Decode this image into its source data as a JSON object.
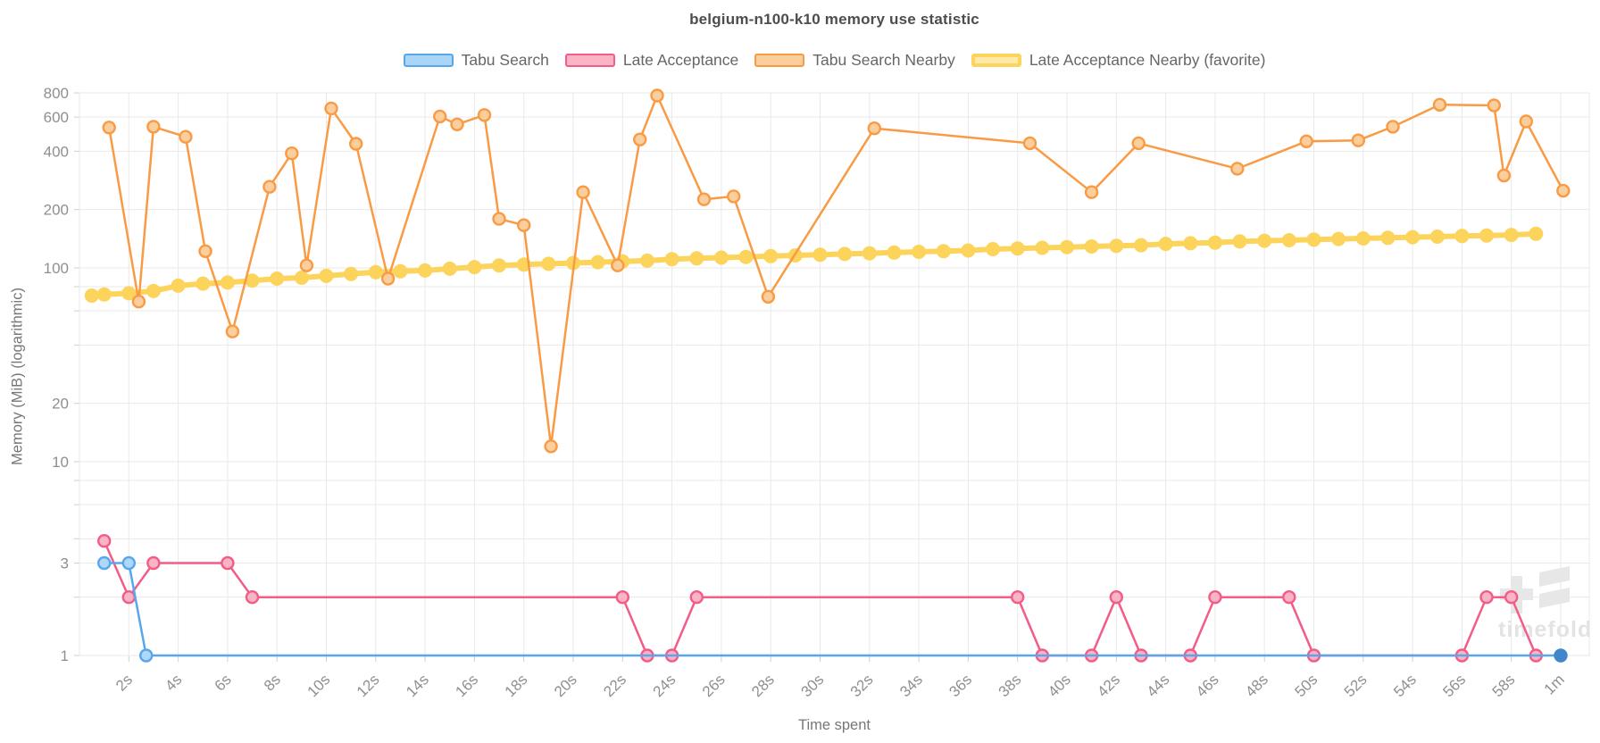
{
  "title": "belgium-n100-k10 memory use statistic",
  "watermark": {
    "text": "timefold"
  },
  "y_axis": {
    "title": "Memory (MiB) (logarithmic)",
    "gridlines": [
      {
        "v": 800,
        "label": "800"
      },
      {
        "v": 600,
        "label": "600"
      },
      {
        "v": 400,
        "label": "400"
      },
      {
        "v": 200,
        "label": "200"
      },
      {
        "v": 100,
        "label": "100"
      },
      {
        "v": 80
      },
      {
        "v": 60
      },
      {
        "v": 40
      },
      {
        "v": 20,
        "label": "20"
      },
      {
        "v": 10,
        "label": "10"
      },
      {
        "v": 8
      },
      {
        "v": 6
      },
      {
        "v": 4
      },
      {
        "v": 3,
        "label": "3"
      },
      {
        "v": 2
      },
      {
        "v": 1,
        "label": "1"
      }
    ]
  },
  "x_axis": {
    "title": "Time spent",
    "ticks": [
      {
        "t": 2,
        "label": "2s"
      },
      {
        "t": 4,
        "label": "4s"
      },
      {
        "t": 6,
        "label": "6s"
      },
      {
        "t": 8,
        "label": "8s"
      },
      {
        "t": 10,
        "label": "10s"
      },
      {
        "t": 12,
        "label": "12s"
      },
      {
        "t": 14,
        "label": "14s"
      },
      {
        "t": 16,
        "label": "16s"
      },
      {
        "t": 18,
        "label": "18s"
      },
      {
        "t": 20,
        "label": "20s"
      },
      {
        "t": 22,
        "label": "22s"
      },
      {
        "t": 24,
        "label": "24s"
      },
      {
        "t": 26,
        "label": "26s"
      },
      {
        "t": 28,
        "label": "28s"
      },
      {
        "t": 30,
        "label": "30s"
      },
      {
        "t": 32,
        "label": "32s"
      },
      {
        "t": 34,
        "label": "34s"
      },
      {
        "t": 36,
        "label": "36s"
      },
      {
        "t": 38,
        "label": "38s"
      },
      {
        "t": 40,
        "label": "40s"
      },
      {
        "t": 42,
        "label": "42s"
      },
      {
        "t": 44,
        "label": "44s"
      },
      {
        "t": 46,
        "label": "46s"
      },
      {
        "t": 48,
        "label": "48s"
      },
      {
        "t": 50,
        "label": "50s"
      },
      {
        "t": 52,
        "label": "52s"
      },
      {
        "t": 54,
        "label": "54s"
      },
      {
        "t": 56,
        "label": "56s"
      },
      {
        "t": 58,
        "label": "58s"
      },
      {
        "t": 60,
        "label": "1m"
      }
    ]
  },
  "chart_data": {
    "type": "line",
    "title": "belgium-n100-k10 memory use statistic",
    "xlabel": "Time spent",
    "ylabel": "Memory (MiB) (logarithmic)",
    "x_unit": "seconds",
    "x_range": [
      0,
      60
    ],
    "y_scale": "log",
    "y_range": [
      1,
      800
    ],
    "grid": true,
    "legend_position": "top",
    "series": [
      {
        "name": "Tabu Search",
        "stroke": "#58A6EC",
        "fill": "#AFD8F8",
        "line_width": 2.5,
        "marker_r": 6.5,
        "end_marker_solid": "#4186CB",
        "points": [
          [
            1,
            3
          ],
          [
            2,
            3
          ],
          [
            2.7,
            1
          ],
          [
            60,
            1
          ]
        ]
      },
      {
        "name": "Late Acceptance",
        "stroke": "#F25C86",
        "fill": "#F9B4C6",
        "line_width": 2.5,
        "marker_r": 6.5,
        "points": [
          [
            1,
            3.9
          ],
          [
            2,
            2
          ],
          [
            3,
            3
          ],
          [
            6,
            3
          ],
          [
            7,
            2
          ],
          [
            22,
            2
          ],
          [
            23,
            1
          ],
          [
            24,
            1
          ],
          [
            25,
            2
          ],
          [
            38,
            2
          ],
          [
            39,
            1
          ],
          [
            41,
            1
          ],
          [
            42,
            2
          ],
          [
            43,
            1
          ],
          [
            45,
            1
          ],
          [
            46,
            2
          ],
          [
            49,
            2
          ],
          [
            50,
            1
          ],
          [
            56,
            1
          ],
          [
            57,
            2
          ],
          [
            58,
            2
          ],
          [
            59,
            1
          ]
        ]
      },
      {
        "name": "Tabu Search Nearby",
        "stroke": "#F99B44",
        "fill": "#FBCF9D",
        "line_width": 2.5,
        "marker_r": 6.5,
        "points": [
          [
            1.2,
            530
          ],
          [
            2.4,
            67
          ],
          [
            3,
            535
          ],
          [
            4.3,
            475
          ],
          [
            5.1,
            122
          ],
          [
            6.2,
            47
          ],
          [
            7.7,
            262
          ],
          [
            8.6,
            390
          ],
          [
            9.2,
            103
          ],
          [
            10.2,
            665
          ],
          [
            11.2,
            437
          ],
          [
            12.5,
            88
          ],
          [
            14.6,
            605
          ],
          [
            15.3,
            550
          ],
          [
            16.4,
            615
          ],
          [
            17,
            179
          ],
          [
            18,
            166
          ],
          [
            19.1,
            12
          ],
          [
            20.4,
            246
          ],
          [
            21.8,
            103
          ],
          [
            22.7,
            460
          ],
          [
            23.4,
            775
          ],
          [
            25.3,
            226
          ],
          [
            26.5,
            234
          ],
          [
            27.9,
            71
          ],
          [
            32.2,
            525
          ],
          [
            38.5,
            440
          ],
          [
            41,
            246
          ],
          [
            42.9,
            440
          ],
          [
            46.9,
            325
          ],
          [
            49.7,
            450
          ],
          [
            51.8,
            455
          ],
          [
            53.2,
            535
          ],
          [
            55.1,
            695
          ],
          [
            57.3,
            690
          ],
          [
            57.7,
            300
          ],
          [
            58.6,
            570
          ],
          [
            60.1,
            250
          ]
        ]
      },
      {
        "name": "Late Acceptance Nearby (favorite)",
        "stroke": "#FCD45B",
        "fill": "#FCD45B",
        "line_width": 6,
        "marker_r": 8,
        "favorite": true,
        "points": [
          [
            0.5,
            72
          ],
          [
            1,
            73
          ],
          [
            2,
            74
          ],
          [
            3,
            76
          ],
          [
            4,
            81
          ],
          [
            5,
            83
          ],
          [
            6,
            84
          ],
          [
            7,
            86
          ],
          [
            8,
            88
          ],
          [
            9,
            89
          ],
          [
            10,
            91
          ],
          [
            11,
            93
          ],
          [
            12,
            95
          ],
          [
            13,
            96
          ],
          [
            14,
            97
          ],
          [
            15,
            99
          ],
          [
            16,
            101
          ],
          [
            17,
            103
          ],
          [
            18,
            104
          ],
          [
            19,
            105
          ],
          [
            20,
            106
          ],
          [
            21,
            107
          ],
          [
            22,
            108
          ],
          [
            23,
            109
          ],
          [
            24,
            111
          ],
          [
            25,
            112
          ],
          [
            26,
            113
          ],
          [
            27,
            114
          ],
          [
            28,
            115
          ],
          [
            29,
            116
          ],
          [
            30,
            117
          ],
          [
            31,
            118
          ],
          [
            32,
            119
          ],
          [
            33,
            120
          ],
          [
            34,
            121
          ],
          [
            35,
            122
          ],
          [
            36,
            123
          ],
          [
            37,
            125
          ],
          [
            38,
            126
          ],
          [
            39,
            127
          ],
          [
            40,
            128
          ],
          [
            41,
            129
          ],
          [
            42,
            130
          ],
          [
            43,
            131
          ],
          [
            44,
            133
          ],
          [
            45,
            134
          ],
          [
            46,
            135
          ],
          [
            47,
            137
          ],
          [
            48,
            138
          ],
          [
            49,
            139
          ],
          [
            50,
            140
          ],
          [
            51,
            141
          ],
          [
            52,
            142
          ],
          [
            53,
            143
          ],
          [
            54,
            144
          ],
          [
            55,
            145
          ],
          [
            56,
            146
          ],
          [
            57,
            147
          ],
          [
            58,
            148
          ],
          [
            59,
            150
          ]
        ]
      }
    ]
  },
  "legend": [
    {
      "label": "Tabu Search",
      "fill": "#ABD5F6",
      "border": "#58A6EC",
      "border_w": 2
    },
    {
      "label": "Late Acceptance",
      "fill": "#F9B4C6",
      "border": "#F25C86",
      "border_w": 2
    },
    {
      "label": "Tabu Search Nearby",
      "fill": "#FBCF9D",
      "border": "#F99B44",
      "border_w": 2
    },
    {
      "label": "Late Acceptance Nearby (favorite)",
      "fill": "#FDE9A8",
      "border": "#FCD45B",
      "border_w": 4
    }
  ]
}
